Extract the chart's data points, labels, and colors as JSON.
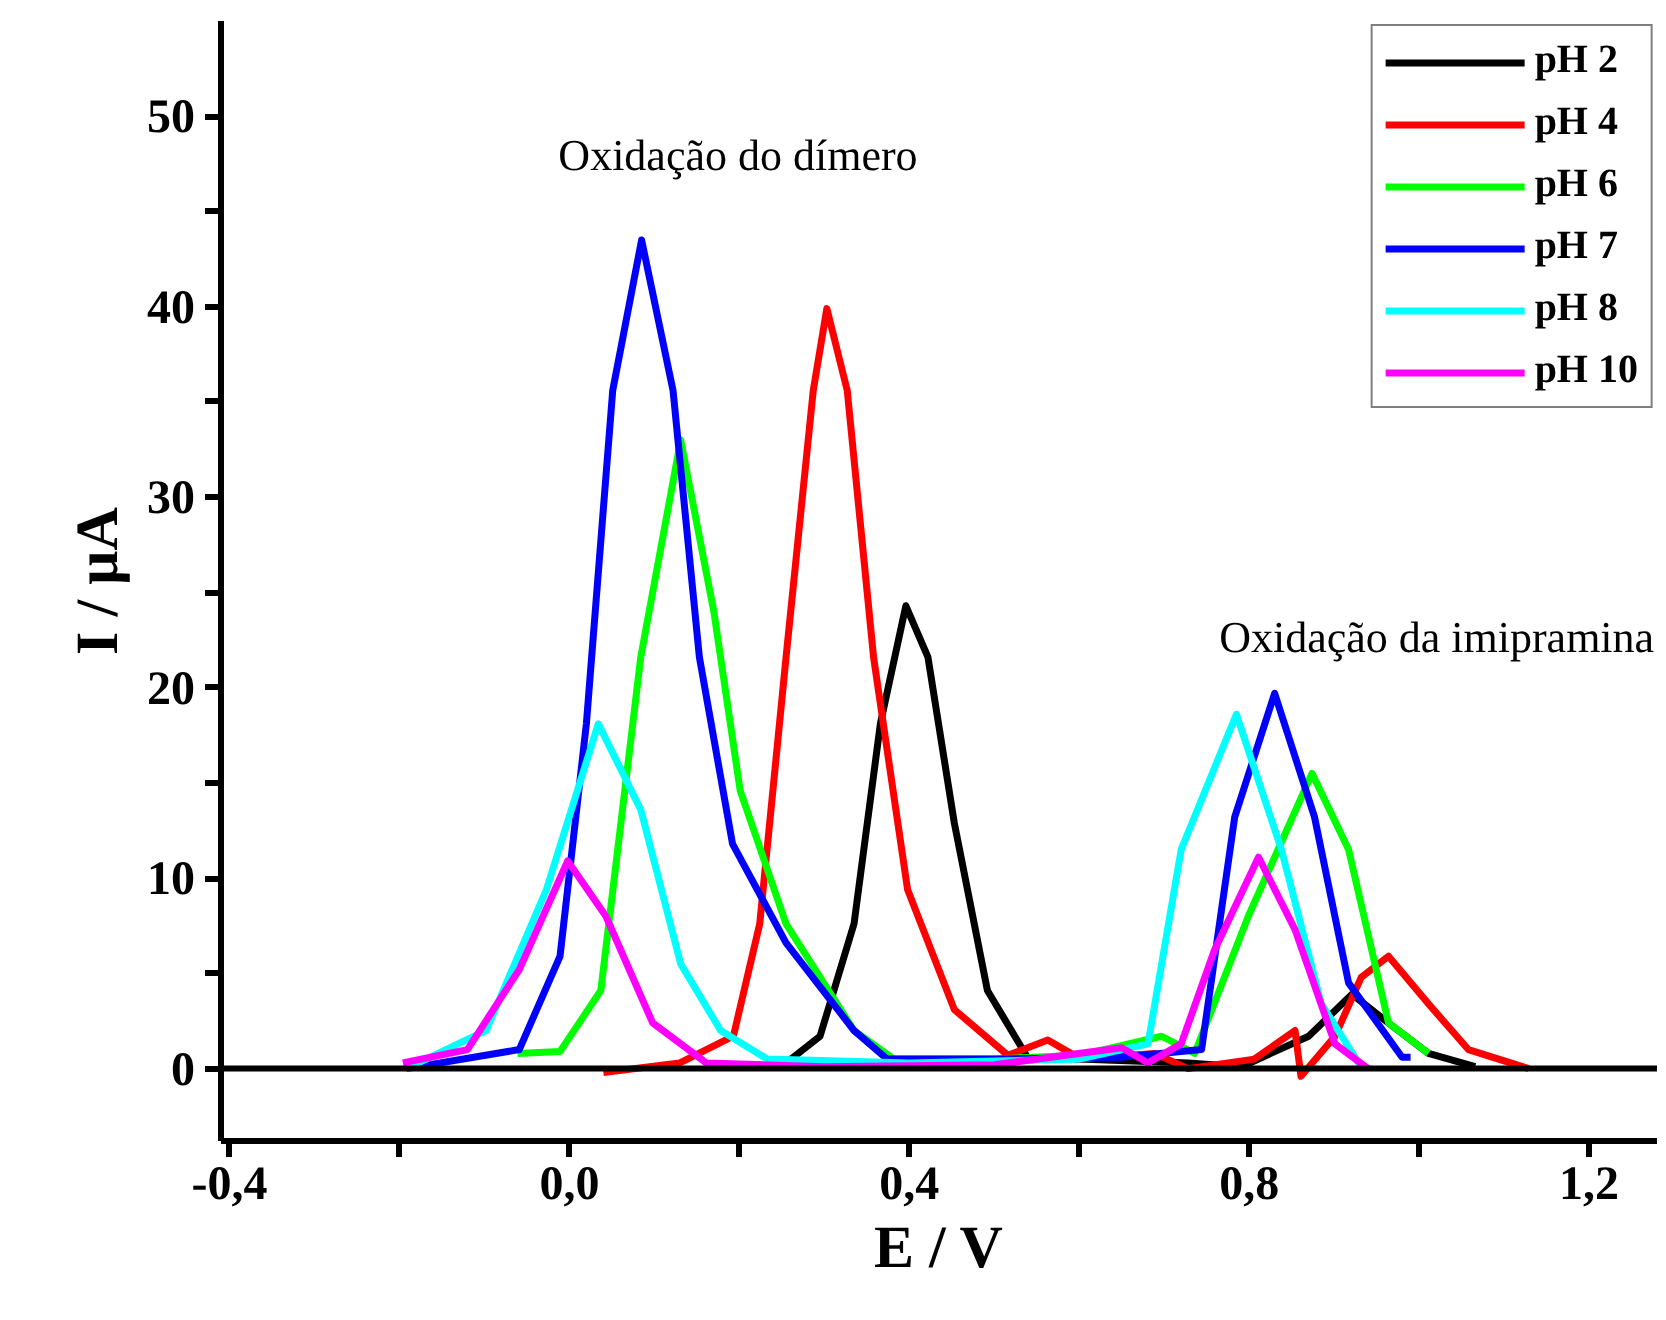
{
  "chart_data": {
    "type": "line",
    "xlabel": "E / V",
    "ylabel": "I / µA",
    "xlim": [
      -0.41,
      1.28
    ],
    "ylim": [
      -3.8,
      55
    ],
    "xticks": [
      {
        "value": -0.4,
        "label": "-0,4"
      },
      {
        "value": -0.2,
        "label": null
      },
      {
        "value": 0.0,
        "label": "0,0"
      },
      {
        "value": 0.2,
        "label": null
      },
      {
        "value": 0.4,
        "label": "0,4"
      },
      {
        "value": 0.6,
        "label": null
      },
      {
        "value": 0.8,
        "label": "0,8"
      },
      {
        "value": 1.0,
        "label": null
      },
      {
        "value": 1.2,
        "label": "1,2"
      }
    ],
    "yticks": [
      0,
      {
        "value": 5,
        "label": null
      },
      10,
      {
        "value": 15,
        "label": null
      },
      20,
      {
        "value": 25,
        "label": null
      },
      30,
      {
        "value": 35,
        "label": null
      },
      40,
      {
        "value": 45,
        "label": null
      },
      50
    ],
    "grid": false,
    "legend": "top right",
    "line_style": "solid",
    "marker": "none",
    "ref_lines": [
      {
        "axis": "y",
        "value": 0,
        "label": null,
        "color": "#000000"
      }
    ],
    "annotations": [
      "Oxidação do dímero",
      "Oxidação da imipramina"
    ],
    "series": [
      {
        "name": "pH 2",
        "color": "#000000",
        "x": [
          0.255,
          0.295,
          0.335,
          0.366,
          0.396,
          0.422,
          0.453,
          0.492,
          0.539,
          0.6,
          0.728,
          0.791,
          0.87,
          0.921,
          0.964,
          1.011,
          1.066
        ],
        "values": [
          0.3,
          1.7,
          7.6,
          18.1,
          24.3,
          21.6,
          12.9,
          4.1,
          0.6,
          0.5,
          0.3,
          0.1,
          1.7,
          3.9,
          2.4,
          0.8,
          0.1
        ]
      },
      {
        "name": "pH 4",
        "color": "#ff0000",
        "x": [
          0.04,
          0.13,
          0.193,
          0.224,
          0.255,
          0.287,
          0.303,
          0.327,
          0.358,
          0.398,
          0.453,
          0.516,
          0.563,
          0.602,
          0.689,
          0.728,
          0.806,
          0.854,
          0.861,
          0.901,
          0.932,
          0.964,
          1.011,
          1.058,
          1.129
        ],
        "values": [
          -0.2,
          0.3,
          1.7,
          7.6,
          21.6,
          35.6,
          39.9,
          35.6,
          21.6,
          9.4,
          3.1,
          0.7,
          1.5,
          0.5,
          0.8,
          0.0,
          0.5,
          2.0,
          -0.4,
          1.7,
          4.8,
          5.9,
          3.4,
          1.0,
          0.0
        ]
      },
      {
        "name": "pH 6",
        "color": "#00ff00",
        "x": [
          -0.061,
          -0.011,
          0.037,
          0.084,
          0.131,
          0.17,
          0.201,
          0.255,
          0.335,
          0.382,
          0.5,
          0.6,
          0.697,
          0.736,
          0.799,
          0.874,
          0.917,
          0.964,
          1.011
        ],
        "values": [
          0.8,
          0.9,
          4.1,
          21.6,
          33.0,
          24.0,
          14.6,
          7.6,
          2.0,
          0.5,
          0.5,
          0.7,
          1.7,
          0.8,
          8.0,
          15.5,
          11.5,
          2.4,
          0.8
        ]
      },
      {
        "name": "pH 7",
        "color": "#0000ff",
        "x": [
          -0.192,
          -0.059,
          -0.011,
          0.02,
          0.051,
          0.085,
          0.122,
          0.153,
          0.192,
          0.255,
          0.335,
          0.374,
          0.5,
          0.65,
          0.744,
          0.783,
          0.83,
          0.877,
          0.917,
          0.98,
          0.99
        ],
        "values": [
          0.0,
          1.0,
          5.9,
          18.1,
          35.6,
          43.5,
          35.6,
          21.6,
          11.8,
          6.6,
          2.0,
          0.5,
          0.5,
          0.6,
          1.0,
          13.2,
          19.7,
          13.2,
          4.5,
          0.6,
          0.6
        ]
      },
      {
        "name": "pH 8",
        "color": "#00ffff",
        "x": [
          -0.192,
          -0.098,
          -0.027,
          0.034,
          0.084,
          0.131,
          0.178,
          0.233,
          0.4,
          0.6,
          0.681,
          0.72,
          0.785,
          0.838,
          0.885,
          0.933
        ],
        "values": [
          0.0,
          2.0,
          9.4,
          18.1,
          13.6,
          5.5,
          2.0,
          0.5,
          0.3,
          0.5,
          1.3,
          11.5,
          18.6,
          11.5,
          3.4,
          0.0
        ]
      },
      {
        "name": "pH 10",
        "color": "#ff00ff",
        "x": [
          -0.196,
          -0.12,
          -0.059,
          -0.002,
          0.043,
          0.098,
          0.161,
          0.3,
          0.5,
          0.65,
          0.681,
          0.72,
          0.759,
          0.811,
          0.854,
          0.901,
          0.94
        ],
        "values": [
          0.3,
          1.0,
          5.2,
          10.9,
          8.0,
          2.4,
          0.3,
          0.1,
          0.2,
          1.1,
          0.3,
          1.3,
          6.2,
          11.1,
          7.3,
          1.3,
          0.0
        ]
      }
    ]
  }
}
